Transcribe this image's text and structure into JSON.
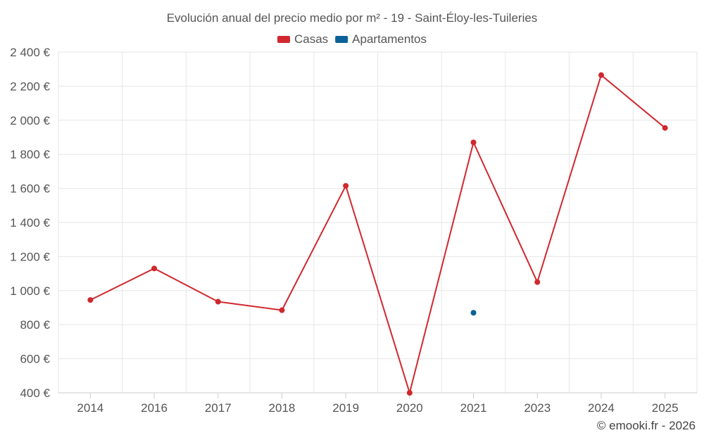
{
  "chart_data": {
    "type": "line",
    "title": "Evolución anual del precio medio por m² - 19 - Saint-Éloy-les-Tuileries",
    "categories": [
      "2014",
      "2016",
      "2017",
      "2018",
      "2019",
      "2020",
      "2021",
      "2023",
      "2024",
      "2025"
    ],
    "series": [
      {
        "name": "Casas",
        "color": "#d0282e",
        "values": [
          945,
          1130,
          935,
          885,
          1615,
          400,
          1870,
          1050,
          2265,
          1955
        ]
      },
      {
        "name": "Apartamentos",
        "color": "#0b6199",
        "values": [
          null,
          null,
          null,
          null,
          null,
          null,
          870,
          null,
          null,
          null
        ]
      }
    ],
    "ylim": [
      400,
      2400
    ],
    "y_ticks": [
      400,
      600,
      800,
      1000,
      1200,
      1400,
      1600,
      1800,
      2000,
      2200,
      2400
    ],
    "y_tick_labels": [
      "400 €",
      "600 €",
      "800 €",
      "1 000 €",
      "1 200 €",
      "1 400 €",
      "1 600 €",
      "1 800 €",
      "2 000 €",
      "2 200 €",
      "2 400 €"
    ],
    "xlabel": "",
    "ylabel": "",
    "grid": true,
    "legend_position": "top-center",
    "credit": "© emooki.fr - 2026"
  }
}
